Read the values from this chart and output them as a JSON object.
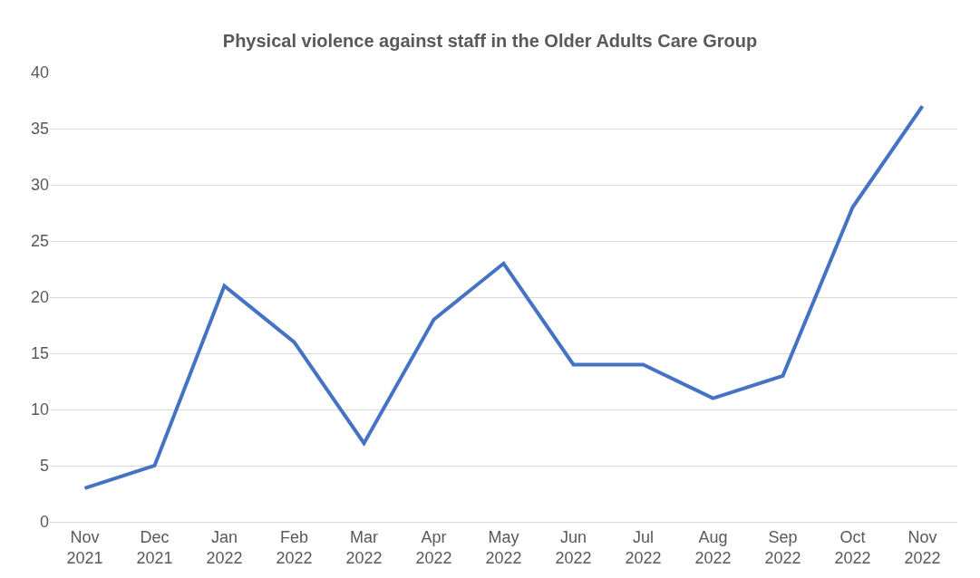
{
  "chart_data": {
    "type": "line",
    "title": "Physical violence against staff in the Older Adults Care Group",
    "categories": [
      "Nov\n2021",
      "Dec\n2021",
      "Jan\n2022",
      "Feb\n2022",
      "Mar\n2022",
      "Apr\n2022",
      "May\n2022",
      "Jun\n2022",
      "Jul\n2022",
      "Aug\n2022",
      "Sep\n2022",
      "Oct\n2022",
      "Nov\n2022"
    ],
    "series": [
      {
        "color": "#4472c4",
        "values": [
          3,
          5,
          21,
          16,
          7,
          18,
          23,
          14,
          14,
          11,
          13,
          28,
          37
        ]
      }
    ],
    "ylim": [
      0,
      40
    ],
    "yticks": [
      0,
      5,
      10,
      15,
      20,
      25,
      30,
      35,
      40
    ],
    "grid": "y",
    "marker": "none",
    "line_style": "solid"
  }
}
